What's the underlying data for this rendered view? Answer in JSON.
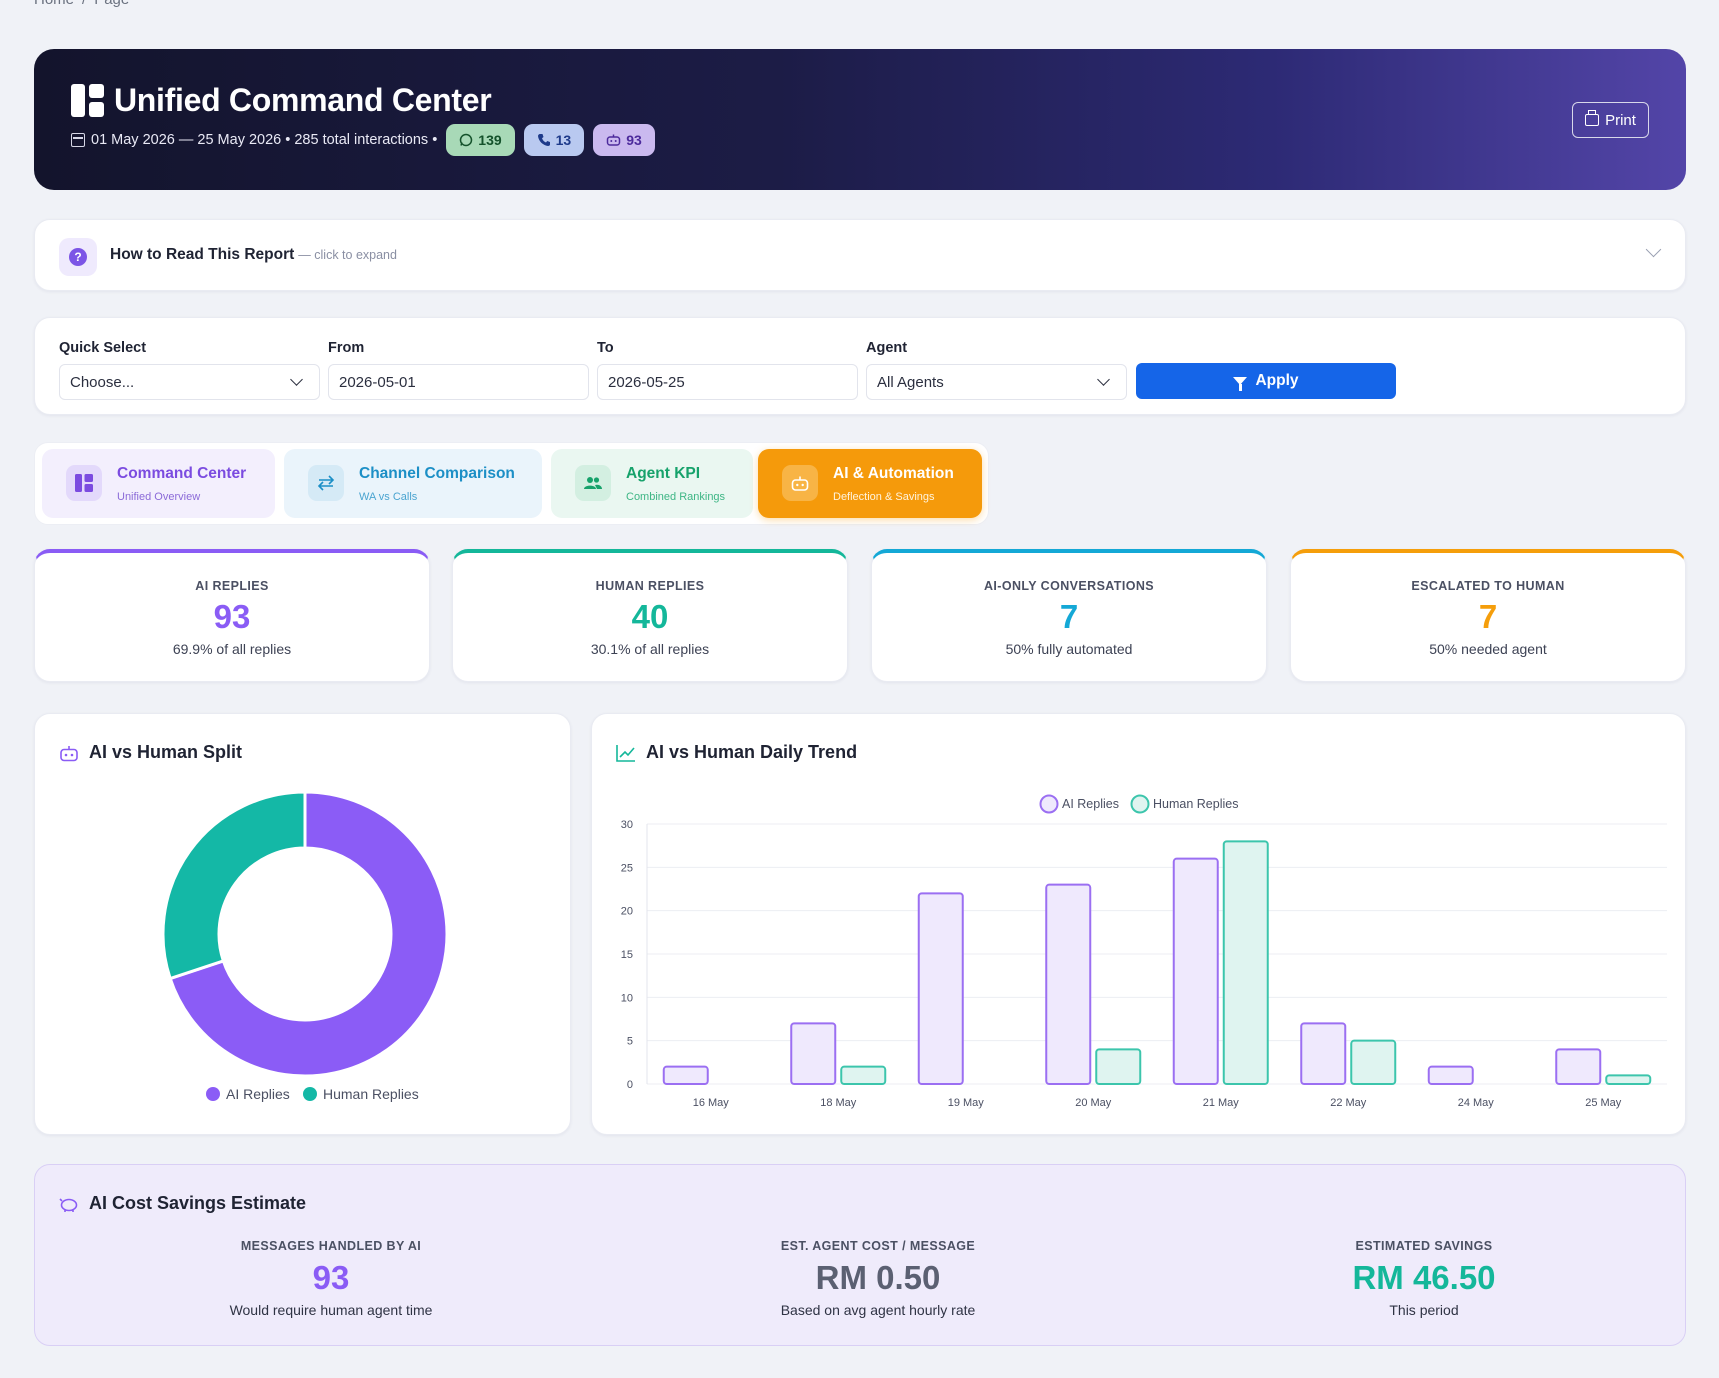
{
  "breadcrumb": [
    "Home",
    "/",
    "Page"
  ],
  "header": {
    "title": "Unified Command Center",
    "subtitle": "01 May 2026 — 25 May 2026 • 285 total interactions •",
    "badges": {
      "whatsapp": "139",
      "calls": "13",
      "ai": "93"
    },
    "print_label": "Print"
  },
  "howto": {
    "title": "How to Read This Report",
    "hint": "— click to expand"
  },
  "filters": {
    "quick_select": {
      "label": "Quick Select",
      "value": "Choose..."
    },
    "from": {
      "label": "From",
      "value": "2026-05-01"
    },
    "to": {
      "label": "To",
      "value": "2026-05-25"
    },
    "agent": {
      "label": "Agent",
      "value": "All Agents"
    },
    "apply_label": "Apply"
  },
  "tabs": [
    {
      "label": "Command Center",
      "sub": "Unified Overview"
    },
    {
      "label": "Channel Comparison",
      "sub": "WA vs Calls"
    },
    {
      "label": "Agent KPI",
      "sub": "Combined Rankings"
    },
    {
      "label": "AI & Automation",
      "sub": "Deflection & Savings"
    }
  ],
  "kpis": [
    {
      "label": "AI Replies",
      "value": "93",
      "sub": "69.9% of all replies",
      "color": "#8a5cf5"
    },
    {
      "label": "Human Replies",
      "value": "40",
      "sub": "30.1% of all replies",
      "color": "#14b79a"
    },
    {
      "label": "AI-Only Conversations",
      "value": "7",
      "sub": "50% fully automated",
      "color": "#14a8d6"
    },
    {
      "label": "Escalated to Human",
      "value": "7",
      "sub": "50% needed agent",
      "color": "#f59e0b"
    }
  ],
  "split_title": "AI vs Human Split",
  "trend_title": "AI vs Human Daily Trend",
  "chart_data": [
    {
      "type": "pie",
      "title": "AI vs Human Split",
      "labels": [
        "AI Replies",
        "Human Replies"
      ],
      "values": [
        93,
        40
      ],
      "colors": [
        "#8b5cf6",
        "#14b8a6"
      ],
      "legend": "bottom"
    },
    {
      "type": "bar",
      "title": "AI vs Human Daily Trend",
      "categories": [
        "16 May",
        "18 May",
        "19 May",
        "20 May",
        "21 May",
        "22 May",
        "24 May",
        "25 May"
      ],
      "series": [
        {
          "name": "AI Replies",
          "values": [
            2,
            7,
            22,
            23,
            26,
            7,
            2,
            4
          ],
          "color": "#8b5cf6"
        },
        {
          "name": "Human Replies",
          "values": [
            0,
            2,
            0,
            4,
            28,
            5,
            0,
            1
          ],
          "color": "#14b8a6"
        }
      ],
      "ylim": [
        0,
        30
      ],
      "yticks": [
        0,
        5,
        10,
        15,
        20,
        25,
        30
      ],
      "legend": "top",
      "grid": true
    }
  ],
  "savings": {
    "title": "AI Cost Savings Estimate",
    "items": [
      {
        "label": "Messages Handled by AI",
        "value": "93",
        "sub": "Would require human agent time",
        "color": "#8a5cf5"
      },
      {
        "label": "Est. Agent Cost / Message",
        "value": "RM 0.50",
        "sub": "Based on avg agent hourly rate",
        "color": "#5b6072"
      },
      {
        "label": "Estimated Savings",
        "value": "RM 46.50",
        "sub": "This period",
        "color": "#14b79a"
      }
    ]
  }
}
